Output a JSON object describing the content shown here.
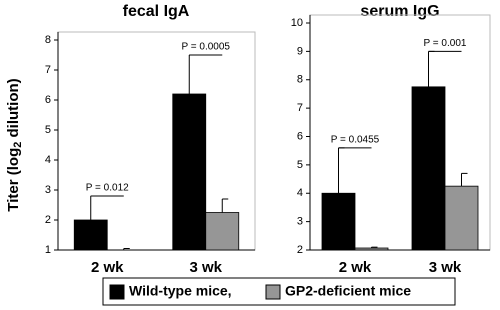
{
  "chart_data": [
    {
      "type": "bar",
      "title": "fecal IgA",
      "ylabel": {
        "text": "Titer (log",
        "sub": "2",
        "tail": " dilution)"
      },
      "categories": [
        "2 wk",
        "3 wk"
      ],
      "series": [
        {
          "name": "Wild-type mice,",
          "color": "#000000",
          "values": [
            2.0,
            6.2
          ],
          "errors": [
            0.8,
            1.3
          ]
        },
        {
          "name": "GP2-deficient mice",
          "color": "#969696",
          "values": [
            1.0,
            2.25
          ],
          "errors": [
            0.05,
            0.45
          ]
        }
      ],
      "annotations": [
        "P = 0.012",
        "P = 0.0005"
      ],
      "ylim": [
        1,
        8
      ],
      "yticks": [
        1,
        2,
        3,
        4,
        5,
        6,
        7,
        8
      ]
    },
    {
      "type": "bar",
      "title": "serum IgG",
      "categories": [
        "2 wk",
        "3 wk"
      ],
      "series": [
        {
          "color": "#000000",
          "values": [
            4.0,
            7.75
          ],
          "errors": [
            1.6,
            1.25
          ]
        },
        {
          "color": "#969696",
          "values": [
            2.07,
            4.25
          ],
          "errors": [
            0.03,
            0.45
          ]
        }
      ],
      "annotations": [
        "P = 0.0455",
        "P = 0.001"
      ],
      "ylim": [
        2,
        10
      ],
      "yticks": [
        2,
        3,
        4,
        5,
        6,
        7,
        8,
        9,
        10
      ]
    }
  ]
}
